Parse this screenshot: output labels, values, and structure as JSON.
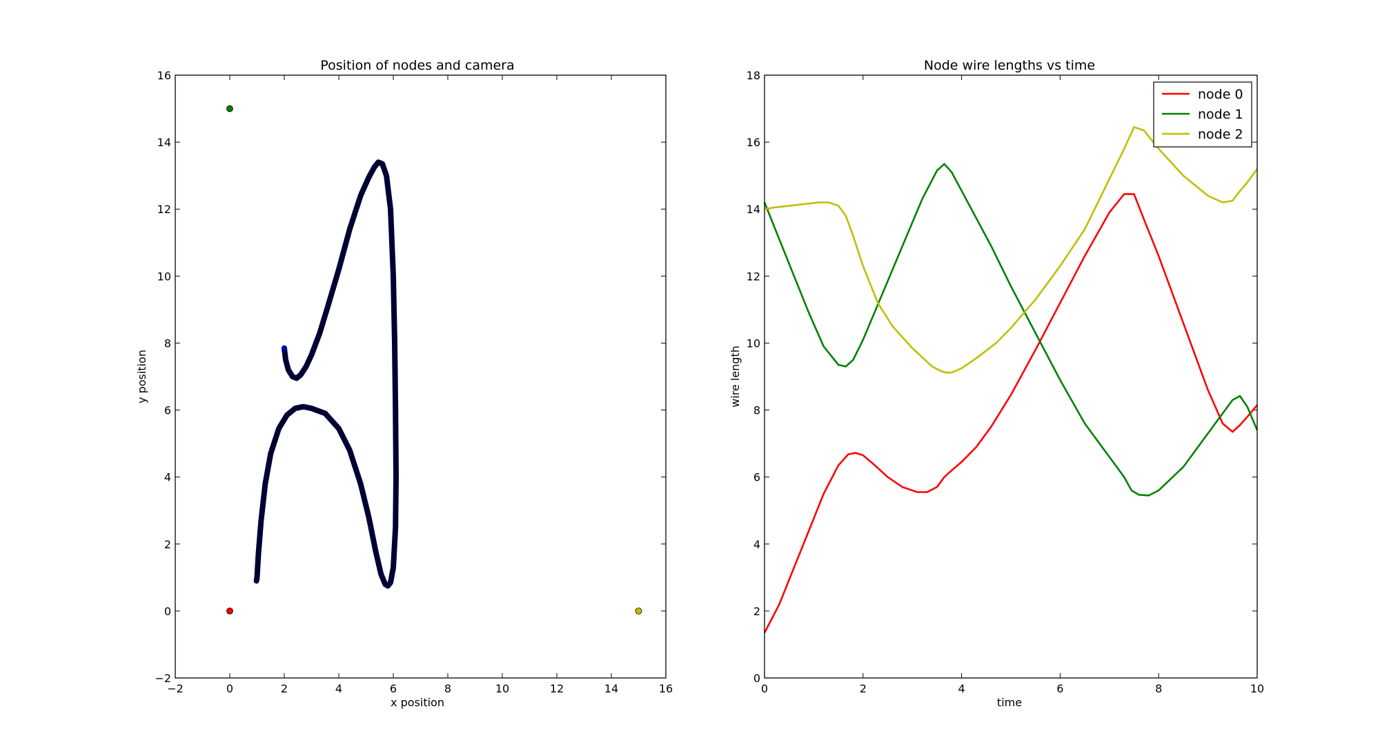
{
  "chart_data": [
    {
      "type": "scatter",
      "title": "Position of nodes and camera",
      "xlabel": "x position",
      "ylabel": "y position",
      "xlim": [
        -2,
        16
      ],
      "ylim": [
        -2,
        16
      ],
      "xticks": [
        "−2",
        "0",
        "2",
        "4",
        "6",
        "8",
        "10",
        "12",
        "14",
        "16"
      ],
      "yticks": [
        "−2",
        "0",
        "2",
        "4",
        "6",
        "8",
        "10",
        "12",
        "14",
        "16"
      ],
      "grid": false,
      "nodes": [
        {
          "x": 0,
          "y": 0,
          "color": "#ff0000"
        },
        {
          "x": 0,
          "y": 15,
          "color": "#008000"
        },
        {
          "x": 15,
          "y": 0,
          "color": "#bfbf00"
        }
      ],
      "camera_start": {
        "x": 2.0,
        "y": 7.85,
        "color": "#0000ff"
      },
      "camera_path_color": "#000033",
      "camera_path": [
        [
          2.0,
          7.85
        ],
        [
          2.05,
          7.5
        ],
        [
          2.15,
          7.2
        ],
        [
          2.3,
          7.0
        ],
        [
          2.45,
          6.95
        ],
        [
          2.6,
          7.05
        ],
        [
          2.8,
          7.3
        ],
        [
          3.0,
          7.65
        ],
        [
          3.3,
          8.3
        ],
        [
          3.6,
          9.1
        ],
        [
          4.0,
          10.2
        ],
        [
          4.4,
          11.4
        ],
        [
          4.8,
          12.4
        ],
        [
          5.1,
          12.95
        ],
        [
          5.3,
          13.25
        ],
        [
          5.45,
          13.4
        ],
        [
          5.6,
          13.35
        ],
        [
          5.75,
          13.0
        ],
        [
          5.9,
          12.0
        ],
        [
          6.0,
          10.0
        ],
        [
          6.05,
          8.0
        ],
        [
          6.08,
          6.0
        ],
        [
          6.1,
          4.0
        ],
        [
          6.08,
          2.5
        ],
        [
          6.0,
          1.3
        ],
        [
          5.9,
          0.85
        ],
        [
          5.8,
          0.75
        ],
        [
          5.7,
          0.8
        ],
        [
          5.55,
          1.1
        ],
        [
          5.35,
          1.8
        ],
        [
          5.1,
          2.8
        ],
        [
          4.8,
          3.8
        ],
        [
          4.4,
          4.8
        ],
        [
          4.0,
          5.45
        ],
        [
          3.5,
          5.9
        ],
        [
          3.0,
          6.05
        ],
        [
          2.7,
          6.1
        ],
        [
          2.4,
          6.05
        ],
        [
          2.1,
          5.85
        ],
        [
          1.8,
          5.45
        ],
        [
          1.5,
          4.7
        ],
        [
          1.3,
          3.8
        ],
        [
          1.15,
          2.7
        ],
        [
          1.05,
          1.7
        ],
        [
          1.0,
          1.0
        ],
        [
          0.98,
          0.9
        ]
      ]
    },
    {
      "type": "line",
      "title": "Node wire lengths vs time",
      "xlabel": "time",
      "ylabel": "wire length",
      "xlim": [
        0,
        10
      ],
      "ylim": [
        0,
        18
      ],
      "xticks": [
        "0",
        "2",
        "4",
        "6",
        "8",
        "10"
      ],
      "yticks": [
        "0",
        "2",
        "4",
        "6",
        "8",
        "10",
        "12",
        "14",
        "16",
        "18"
      ],
      "grid": false,
      "legend_position": "top-right",
      "series": [
        {
          "name": "node 0",
          "color": "#ff0000",
          "x": [
            0,
            0.3,
            0.6,
            0.9,
            1.2,
            1.5,
            1.7,
            1.85,
            2.0,
            2.2,
            2.5,
            2.8,
            3.1,
            3.3,
            3.5,
            3.65,
            3.8,
            4.0,
            4.3,
            4.6,
            5.0,
            5.5,
            6.0,
            6.5,
            7.0,
            7.3,
            7.5,
            7.7,
            8.0,
            8.5,
            9.0,
            9.3,
            9.5,
            9.65,
            9.8,
            10.0
          ],
          "y": [
            1.35,
            2.2,
            3.3,
            4.4,
            5.5,
            6.35,
            6.68,
            6.72,
            6.65,
            6.4,
            6.0,
            5.7,
            5.55,
            5.55,
            5.7,
            6.0,
            6.2,
            6.45,
            6.9,
            7.5,
            8.45,
            9.8,
            11.2,
            12.6,
            13.9,
            14.45,
            14.45,
            13.7,
            12.6,
            10.6,
            8.6,
            7.6,
            7.35,
            7.55,
            7.8,
            8.15
          ]
        },
        {
          "name": "node 1",
          "color": "#008000",
          "x": [
            0,
            0.3,
            0.6,
            0.9,
            1.2,
            1.5,
            1.65,
            1.8,
            2.0,
            2.4,
            2.8,
            3.2,
            3.5,
            3.65,
            3.8,
            4.2,
            4.6,
            5.0,
            5.5,
            6.0,
            6.5,
            7.0,
            7.3,
            7.45,
            7.6,
            7.8,
            8.0,
            8.5,
            9.0,
            9.3,
            9.5,
            9.65,
            9.8,
            10.0
          ],
          "y": [
            14.2,
            13.1,
            12.0,
            10.9,
            9.9,
            9.35,
            9.3,
            9.5,
            10.1,
            11.5,
            12.9,
            14.3,
            15.15,
            15.35,
            15.1,
            14.0,
            12.9,
            11.7,
            10.3,
            8.9,
            7.6,
            6.6,
            6.0,
            5.6,
            5.47,
            5.45,
            5.6,
            6.3,
            7.3,
            7.9,
            8.3,
            8.42,
            8.1,
            7.4
          ]
        },
        {
          "name": "node 2",
          "color": "#bfbf00",
          "x": [
            0,
            0.2,
            0.5,
            0.8,
            1.1,
            1.3,
            1.5,
            1.65,
            1.8,
            2.0,
            2.3,
            2.6,
            3.0,
            3.4,
            3.6,
            3.7,
            3.8,
            4.0,
            4.3,
            4.7,
            5.0,
            5.5,
            6.0,
            6.5,
            7.0,
            7.3,
            7.5,
            7.7,
            8.0,
            8.5,
            9.0,
            9.3,
            9.5,
            9.6,
            9.8,
            10.0
          ],
          "y": [
            14.0,
            14.05,
            14.1,
            14.15,
            14.2,
            14.2,
            14.1,
            13.8,
            13.2,
            12.3,
            11.2,
            10.5,
            9.85,
            9.3,
            9.15,
            9.12,
            9.12,
            9.25,
            9.55,
            10.0,
            10.45,
            11.3,
            12.3,
            13.4,
            14.9,
            15.8,
            16.45,
            16.35,
            15.8,
            15.0,
            14.4,
            14.2,
            14.25,
            14.45,
            14.8,
            15.2
          ]
        }
      ]
    }
  ]
}
